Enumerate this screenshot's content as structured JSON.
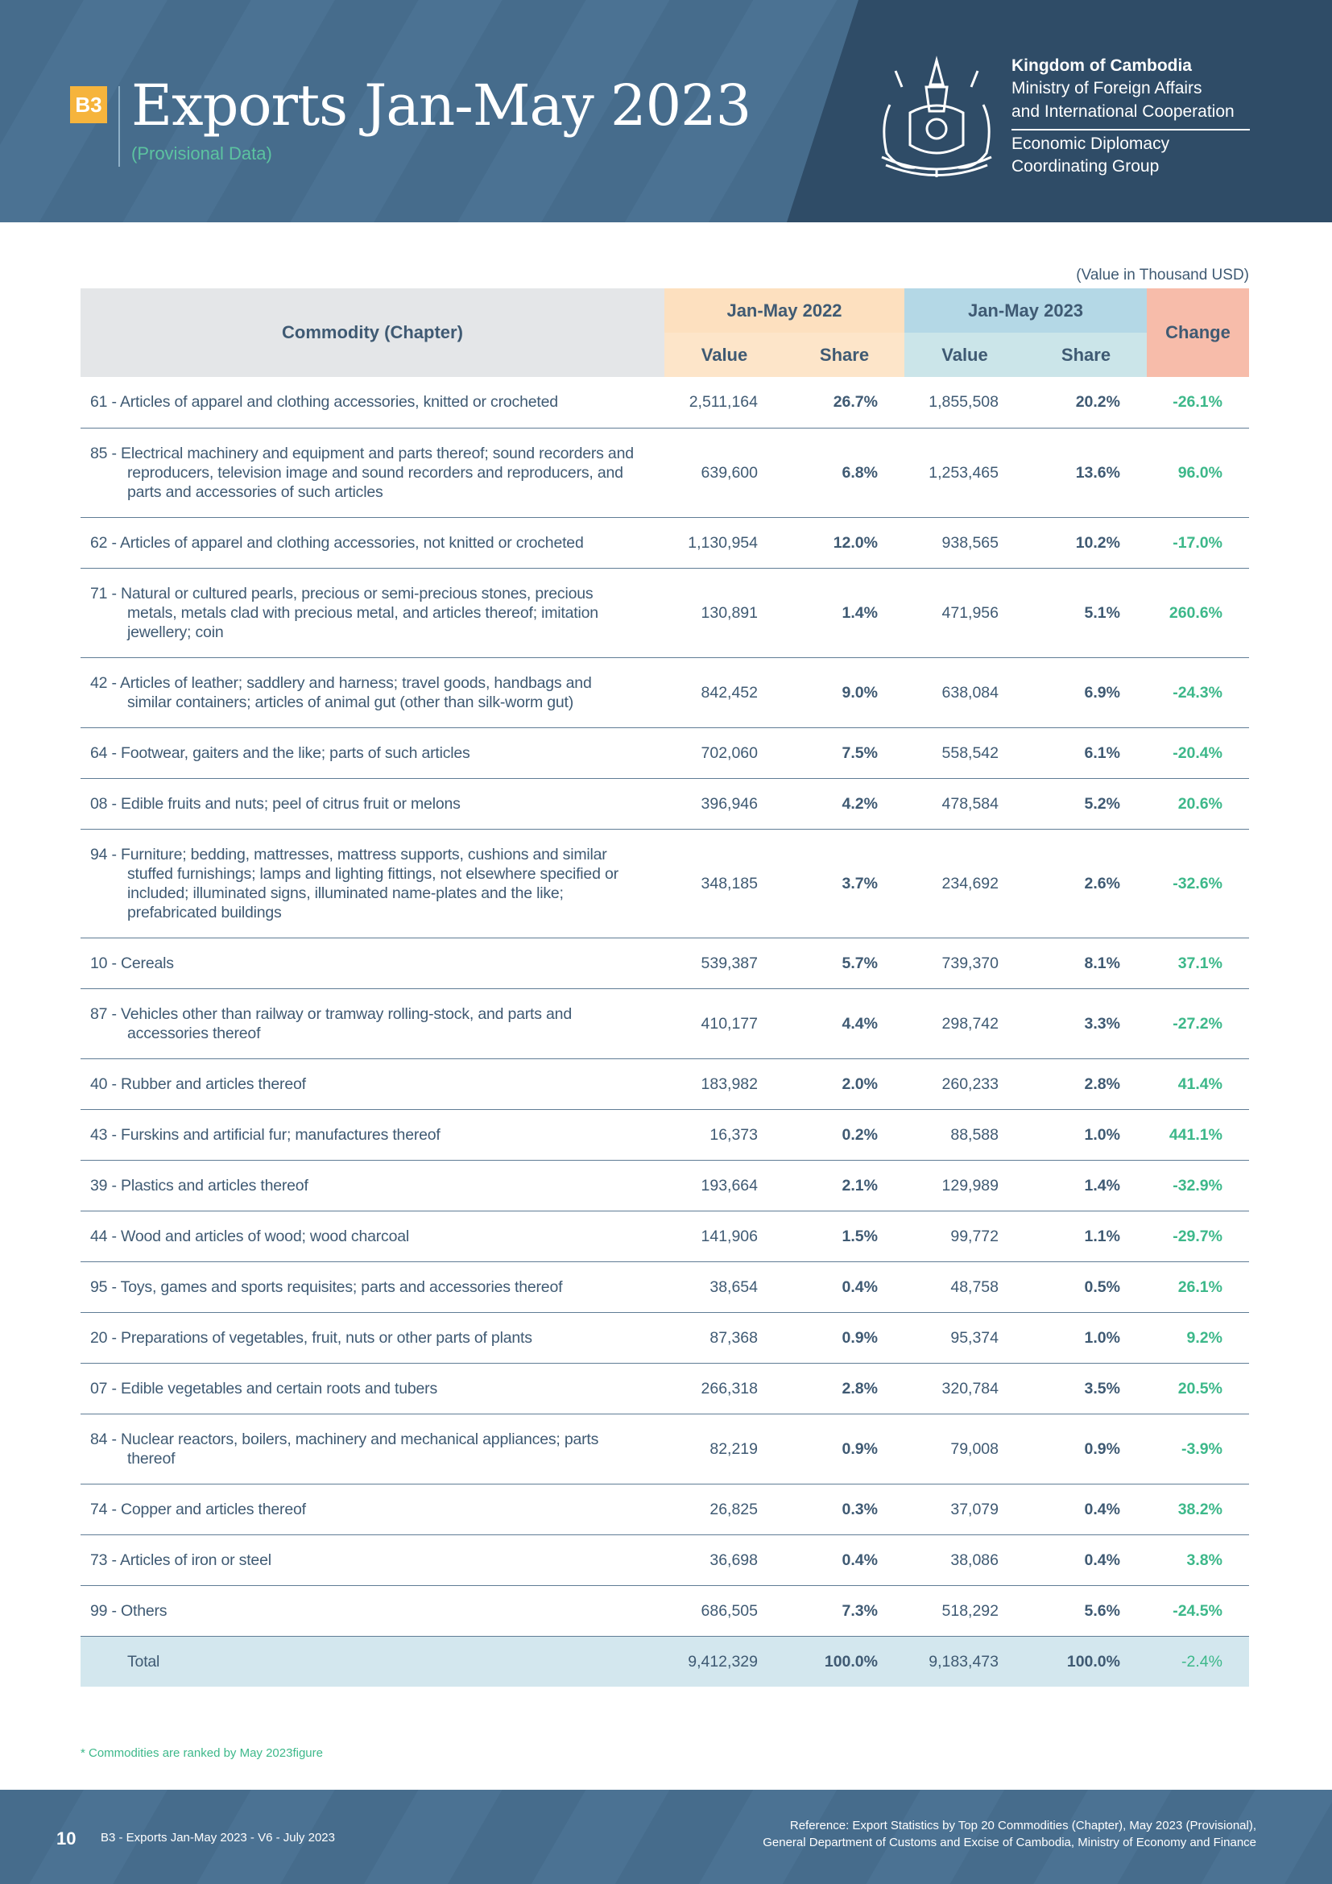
{
  "header": {
    "badge": "B3",
    "title": "Exports Jan-May 2023",
    "subtitle": "(Provisional Data)",
    "org": [
      "Kingdom of Cambodia",
      "Ministry of Foreign Affairs",
      "and International Cooperation"
    ],
    "group": [
      "Economic Diplomacy",
      "Coordinating Group"
    ]
  },
  "table": {
    "unit_note": "(Value in Thousand USD)",
    "columns": {
      "commodity": "Commodity (Chapter)",
      "period_2022": "Jan-May 2022",
      "period_2023": "Jan-May 2023",
      "value": "Value",
      "share": "Share",
      "change": "Change"
    },
    "rows": [
      [
        "61 - Articles of apparel and clothing accessories, knitted or crocheted",
        "2,511,164",
        "26.7%",
        "1,855,508",
        "20.2%",
        "-26.1%"
      ],
      [
        "85 - Electrical machinery and equipment and parts thereof; sound recorders and reproducers, television image and sound recorders and reproducers, and parts and accessories of such articles",
        "639,600",
        "6.8%",
        "1,253,465",
        "13.6%",
        "96.0%"
      ],
      [
        "62 - Articles of apparel and clothing accessories, not knitted or crocheted",
        "1,130,954",
        "12.0%",
        "938,565",
        "10.2%",
        "-17.0%"
      ],
      [
        "71 - Natural or cultured pearls, precious or semi-precious stones, precious metals, metals clad with precious metal, and articles thereof; imitation jewellery; coin",
        "130,891",
        "1.4%",
        "471,956",
        "5.1%",
        "260.6%"
      ],
      [
        "42 - Articles of leather; saddlery and harness; travel goods, handbags and similar containers; articles of animal gut (other than silk-worm gut)",
        "842,452",
        "9.0%",
        "638,084",
        "6.9%",
        "-24.3%"
      ],
      [
        "64 - Footwear, gaiters and the like; parts of such articles",
        "702,060",
        "7.5%",
        "558,542",
        "6.1%",
        "-20.4%"
      ],
      [
        "08 - Edible fruits and nuts; peel of citrus fruit or melons",
        "396,946",
        "4.2%",
        "478,584",
        "5.2%",
        "20.6%"
      ],
      [
        "94 - Furniture; bedding, mattresses, mattress supports, cushions and similar stuffed furnishings; lamps and lighting fittings, not elsewhere specified or included; illuminated signs, illuminated name-plates and the like; prefabricated buildings",
        "348,185",
        "3.7%",
        "234,692",
        "2.6%",
        "-32.6%"
      ],
      [
        "10 - Cereals",
        "539,387",
        "5.7%",
        "739,370",
        "8.1%",
        "37.1%"
      ],
      [
        "87 - Vehicles other than railway or tramway rolling-stock, and parts and accessories thereof",
        "410,177",
        "4.4%",
        "298,742",
        "3.3%",
        "-27.2%"
      ],
      [
        "40 - Rubber and articles thereof",
        "183,982",
        "2.0%",
        "260,233",
        "2.8%",
        "41.4%"
      ],
      [
        "43 - Furskins and artificial fur; manufactures thereof",
        "16,373",
        "0.2%",
        "88,588",
        "1.0%",
        "441.1%"
      ],
      [
        "39 - Plastics and articles thereof",
        "193,664",
        "2.1%",
        "129,989",
        "1.4%",
        "-32.9%"
      ],
      [
        "44 - Wood and articles of wood; wood charcoal",
        "141,906",
        "1.5%",
        "99,772",
        "1.1%",
        "-29.7%"
      ],
      [
        "95 - Toys, games and sports requisites; parts and accessories thereof",
        "38,654",
        "0.4%",
        "48,758",
        "0.5%",
        "26.1%"
      ],
      [
        "20 - Preparations of vegetables, fruit, nuts or other parts of plants",
        "87,368",
        "0.9%",
        "95,374",
        "1.0%",
        "9.2%"
      ],
      [
        "07 - Edible vegetables and certain roots and tubers",
        "266,318",
        "2.8%",
        "320,784",
        "3.5%",
        "20.5%"
      ],
      [
        "84 - Nuclear reactors, boilers, machinery and mechanical appliances; parts thereof",
        "82,219",
        "0.9%",
        "79,008",
        "0.9%",
        "-3.9%"
      ],
      [
        "74 - Copper and articles thereof",
        "26,825",
        "0.3%",
        "37,079",
        "0.4%",
        "38.2%"
      ],
      [
        "73 - Articles of iron or steel",
        "36,698",
        "0.4%",
        "38,086",
        "0.4%",
        "3.8%"
      ],
      [
        "99 - Others",
        "686,505",
        "7.3%",
        "518,292",
        "5.6%",
        "-24.5%"
      ]
    ],
    "total": [
      "Total",
      "9,412,329",
      "100.0%",
      "9,183,473",
      "100.0%",
      "-2.4%"
    ]
  },
  "footnote": "* Commodities are ranked by May 2023figure",
  "footer": {
    "page": "10",
    "doc": "B3 - Exports Jan-May 2023 - V6 - July 2023",
    "reference": [
      "Reference: Export Statistics by Top 20 Commodities (Chapter), May 2023  (Provisional),",
      "General Department of Customs and Excise of Cambodia, Ministry of Economy and Finance"
    ]
  }
}
